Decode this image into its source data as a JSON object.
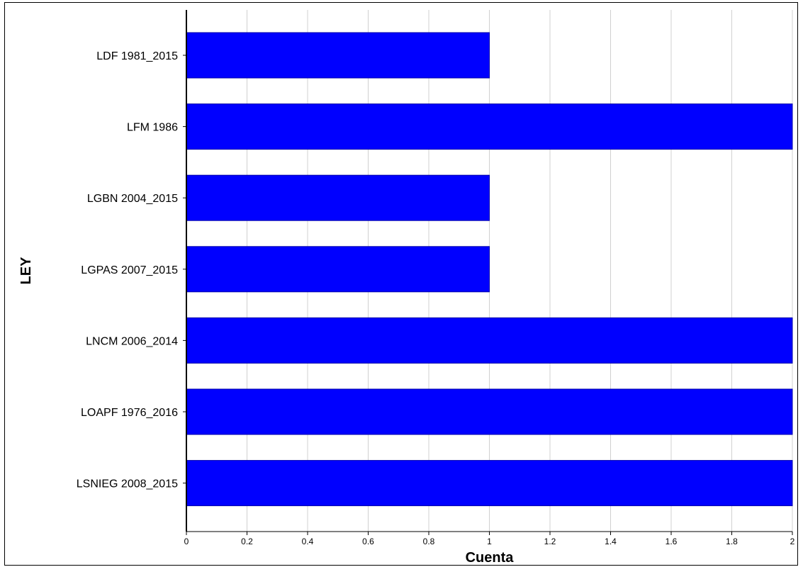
{
  "chart_data": {
    "type": "bar",
    "orientation": "horizontal",
    "categories": [
      "LDF 1981_2015",
      "LFM 1986",
      "LGBN 2004_2015",
      "LGPAS 2007_2015",
      "LNCM 2006_2014",
      "LOAPF 1976_2016",
      "LSNIEG 2008_2015"
    ],
    "values": [
      1,
      2,
      1,
      1,
      2,
      2,
      2
    ],
    "xlabel": "Cuenta",
    "ylabel": "LEY",
    "xlim": [
      0,
      2
    ],
    "xticks": [
      "0",
      "0.2",
      "0.4",
      "0.6",
      "0.8",
      "1",
      "1.2",
      "1.4",
      "1.6",
      "1.8",
      "2"
    ],
    "grid": "vertical",
    "bar_color": "#0000ff",
    "legend": "none"
  }
}
